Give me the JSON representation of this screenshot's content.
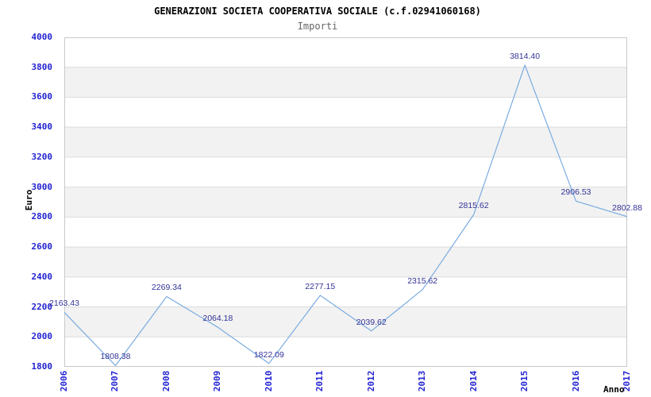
{
  "chart": {
    "title": "GENERAZIONI SOCIETA COOPERATIVA SOCIALE (c.f.02941060168)",
    "subtitle": "Importi"
  },
  "chart_data": {
    "type": "line",
    "title": "GENERAZIONI SOCIETA COOPERATIVA SOCIALE (c.f.02941060168)",
    "subtitle": "Importi",
    "xlabel": "Anno",
    "ylabel": "Euro",
    "categories": [
      "2006",
      "2007",
      "2008",
      "2009",
      "2010",
      "2011",
      "2012",
      "2013",
      "2014",
      "2015",
      "2016",
      "2017"
    ],
    "values": [
      2163.43,
      1808.38,
      2269.34,
      2064.18,
      1822.09,
      2277.15,
      2039.62,
      2315.62,
      2815.62,
      3814.4,
      2906.53,
      2802.88
    ],
    "point_labels": [
      "2163.43",
      "1808.38",
      "2269.34",
      "2064.18",
      "1822.09",
      "2277.15",
      "2039.62",
      "2315.62",
      "2815.62",
      "3814.40",
      "2906.53",
      "2802.88"
    ],
    "ylim": [
      1800,
      4000
    ],
    "ytick_step": 200,
    "yticks": [
      "4000",
      "3800",
      "3600",
      "3400",
      "3200",
      "3000",
      "2800",
      "2600",
      "2400",
      "2200",
      "2000",
      "1800"
    ],
    "grid": "horizontal",
    "alternating_bands": true,
    "legend_position": "none",
    "colors": {
      "line": "#7aace0",
      "tick_label": "#2323d2",
      "data_label": "#333399",
      "band": "#f2f2f2",
      "gridline": "#dcdcdc",
      "plot_border": "#c9c9c9",
      "title": "#000000",
      "subtitle": "#666666",
      "background": "#ffffff"
    }
  }
}
